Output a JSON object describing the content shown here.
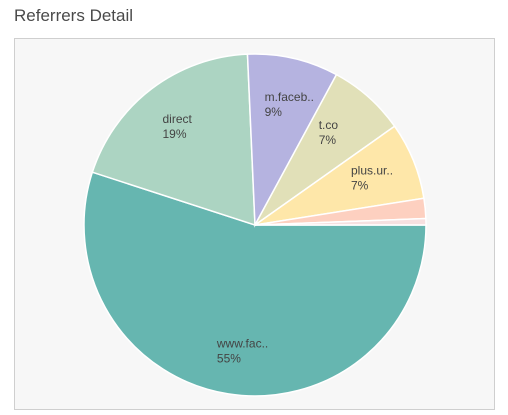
{
  "panel": {
    "title": "Referrers Detail"
  },
  "chart_data": {
    "type": "pie",
    "slices": [
      {
        "label": "www.fac..",
        "pct_label": "55%",
        "value": 55.0,
        "color": "#66b6b0"
      },
      {
        "label": "direct",
        "pct_label": "19%",
        "value": 19.3,
        "color": "#acd4c2"
      },
      {
        "label": "m.faceb..",
        "pct_label": "9%",
        "value": 8.6,
        "color": "#b5b3e0"
      },
      {
        "label": "t.co",
        "pct_label": "7%",
        "value": 7.3,
        "color": "#e1e0b8"
      },
      {
        "label": "plus.ur..",
        "pct_label": "7%",
        "value": 7.3,
        "color": "#fee7a9"
      },
      {
        "label": "",
        "pct_label": "",
        "value": 1.9,
        "color": "#fdd0c0"
      },
      {
        "label": "",
        "pct_label": "",
        "value": 0.6,
        "color": "#f6e0e0"
      }
    ]
  }
}
